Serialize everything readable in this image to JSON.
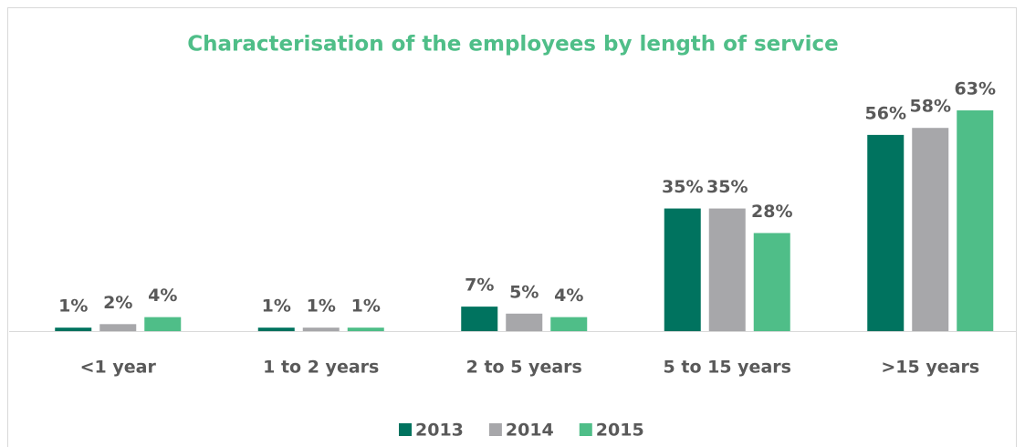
{
  "chart_data": {
    "type": "bar",
    "title": "Characterisation of the employees by length of service",
    "categories": [
      "<1 year",
      "1 to 2 years",
      "2 to 5 years",
      "5 to 15 years",
      ">15 years"
    ],
    "series": [
      {
        "name": "2013",
        "color": "#00735f",
        "values": [
          1,
          1,
          7,
          35,
          56
        ],
        "value_labels": [
          "1%",
          "1%",
          "7%",
          "35%",
          "56%"
        ]
      },
      {
        "name": "2014",
        "color": "#a7a7aa",
        "values": [
          2,
          1,
          5,
          35,
          58
        ],
        "value_labels": [
          "2%",
          "1%",
          "5%",
          "35%",
          "58%"
        ]
      },
      {
        "name": "2015",
        "color": "#4fbe88",
        "values": [
          4,
          1,
          4,
          28,
          63
        ],
        "value_labels": [
          "4%",
          "1%",
          "4%",
          "28%",
          "63%"
        ]
      }
    ],
    "legend": "bottom"
  }
}
